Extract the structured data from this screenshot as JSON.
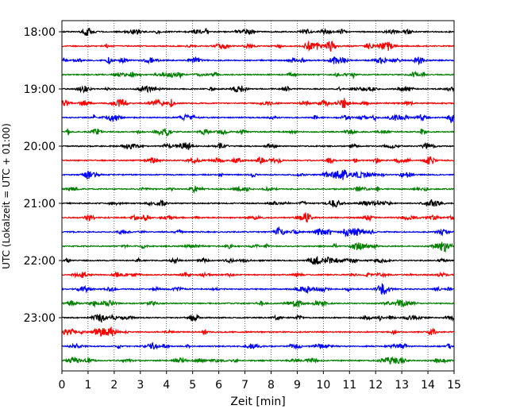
{
  "chart_data": {
    "type": "line",
    "title": "",
    "xlabel": "Zeit  [min]",
    "ylabel": "UTC (Lokalzeit = UTC + 01:00)",
    "xlim": [
      0,
      15
    ],
    "x_ticks": [
      "0",
      "1",
      "2",
      "3",
      "4",
      "5",
      "6",
      "7",
      "8",
      "9",
      "10",
      "11",
      "12",
      "13",
      "14",
      "15"
    ],
    "y_ticks": [
      "18:00",
      "19:00",
      "20:00",
      "21:00",
      "22:00",
      "23:00"
    ],
    "grid": "vertical dotted",
    "legend": "none",
    "colors": [
      "#000000",
      "#ff0000",
      "#0000ff",
      "#008000"
    ],
    "series": [
      {
        "time": "18:00",
        "color": "#000000"
      },
      {
        "time": "18:15",
        "color": "#ff0000"
      },
      {
        "time": "18:30",
        "color": "#0000ff"
      },
      {
        "time": "18:45",
        "color": "#008000"
      },
      {
        "time": "19:00",
        "color": "#000000"
      },
      {
        "time": "19:15",
        "color": "#ff0000"
      },
      {
        "time": "19:30",
        "color": "#0000ff"
      },
      {
        "time": "19:45",
        "color": "#008000"
      },
      {
        "time": "20:00",
        "color": "#000000"
      },
      {
        "time": "20:15",
        "color": "#ff0000"
      },
      {
        "time": "20:30",
        "color": "#0000ff"
      },
      {
        "time": "20:45",
        "color": "#008000"
      },
      {
        "time": "21:00",
        "color": "#000000"
      },
      {
        "time": "21:15",
        "color": "#ff0000"
      },
      {
        "time": "21:30",
        "color": "#0000ff"
      },
      {
        "time": "21:45",
        "color": "#008000"
      },
      {
        "time": "22:00",
        "color": "#000000"
      },
      {
        "time": "22:15",
        "color": "#ff0000"
      },
      {
        "time": "22:30",
        "color": "#0000ff"
      },
      {
        "time": "22:45",
        "color": "#008000"
      },
      {
        "time": "23:00",
        "color": "#000000"
      },
      {
        "time": "23:15",
        "color": "#ff0000"
      },
      {
        "time": "23:30",
        "color": "#0000ff"
      },
      {
        "time": "23:45",
        "color": "#008000"
      }
    ]
  }
}
